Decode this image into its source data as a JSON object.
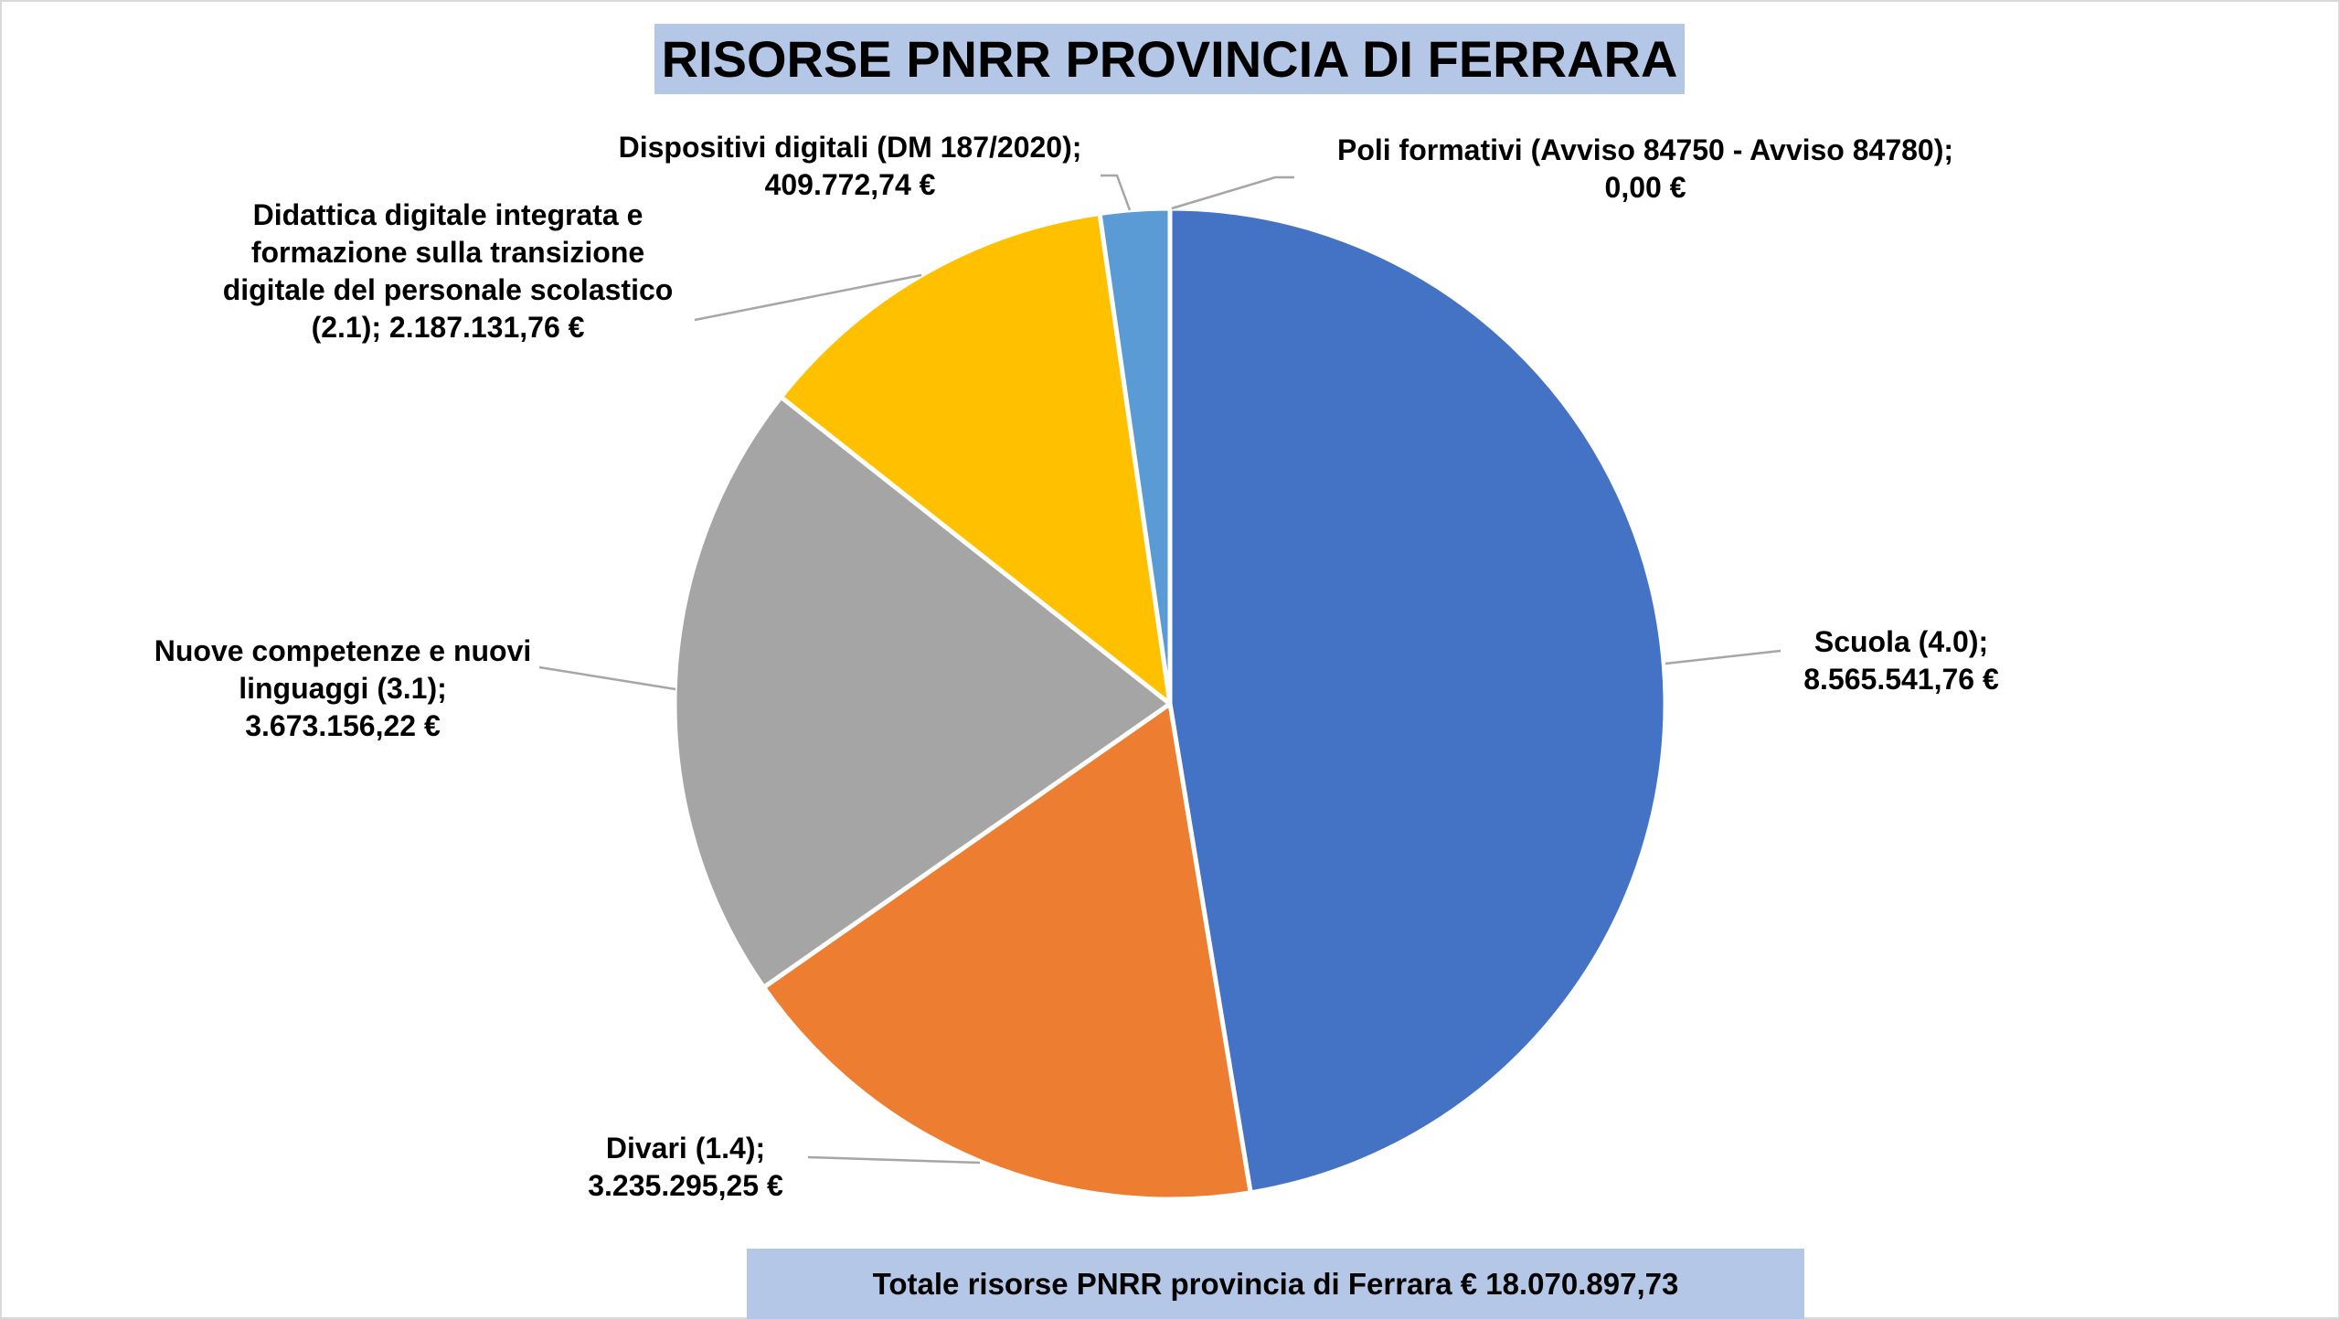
{
  "chart_data": {
    "type": "pie",
    "title": "RISORSE PNRR PROVINCIA DI FERRARA",
    "footer": "Totale risorse PNRR provincia di Ferrara € 18.070.897,73",
    "slices": [
      {
        "name": "Scuola (4.0);",
        "value": 8565541.76,
        "value_label": "8.565.541,76 €",
        "color": "#4472c4"
      },
      {
        "name": "Divari (1.4);",
        "value": 3235295.25,
        "value_label": "3.235.295,25 €",
        "color": "#ed7d31"
      },
      {
        "name": "Nuove competenze e nuovi linguaggi (3.1);",
        "value": 3673156.22,
        "value_label": "3.673.156,22 €",
        "color": "#a5a5a5"
      },
      {
        "name": "Didattica digitale integrata e formazione sulla transizione digitale del personale scolastico (2.1);",
        "value": 2187131.76,
        "value_label": "2.187.131,76 €",
        "color": "#ffc000"
      },
      {
        "name": "Dispositivi digitali (DM 187/2020);",
        "value": 409772.74,
        "value_label": "409.772,74 €",
        "color": "#5b9bd5"
      },
      {
        "name": "Poli formativi (Avviso 84750 - Avviso 84780);",
        "value": 0,
        "value_label": "0,00 €",
        "color": "#70ad47"
      }
    ],
    "label_lines": {
      "scuola": [
        "Scuola (4.0);",
        "8.565.541,76 €"
      ],
      "divari": [
        "Divari (1.4);",
        "3.235.295,25 €"
      ],
      "nuove": [
        "Nuove competenze e nuovi",
        "linguaggi (3.1);",
        "3.673.156,22 €"
      ],
      "didattica": [
        "Didattica digitale integrata e",
        "formazione sulla transizione",
        "digitale del personale scolastico",
        "(2.1); 2.187.131,76 €"
      ],
      "dispositivi": [
        "Dispositivi digitali (DM 187/2020);",
        "409.772,74 €"
      ],
      "poli": [
        "Poli formativi (Avviso 84750 - Avviso 84780);",
        "0,00 €"
      ]
    },
    "legend": "none"
  }
}
